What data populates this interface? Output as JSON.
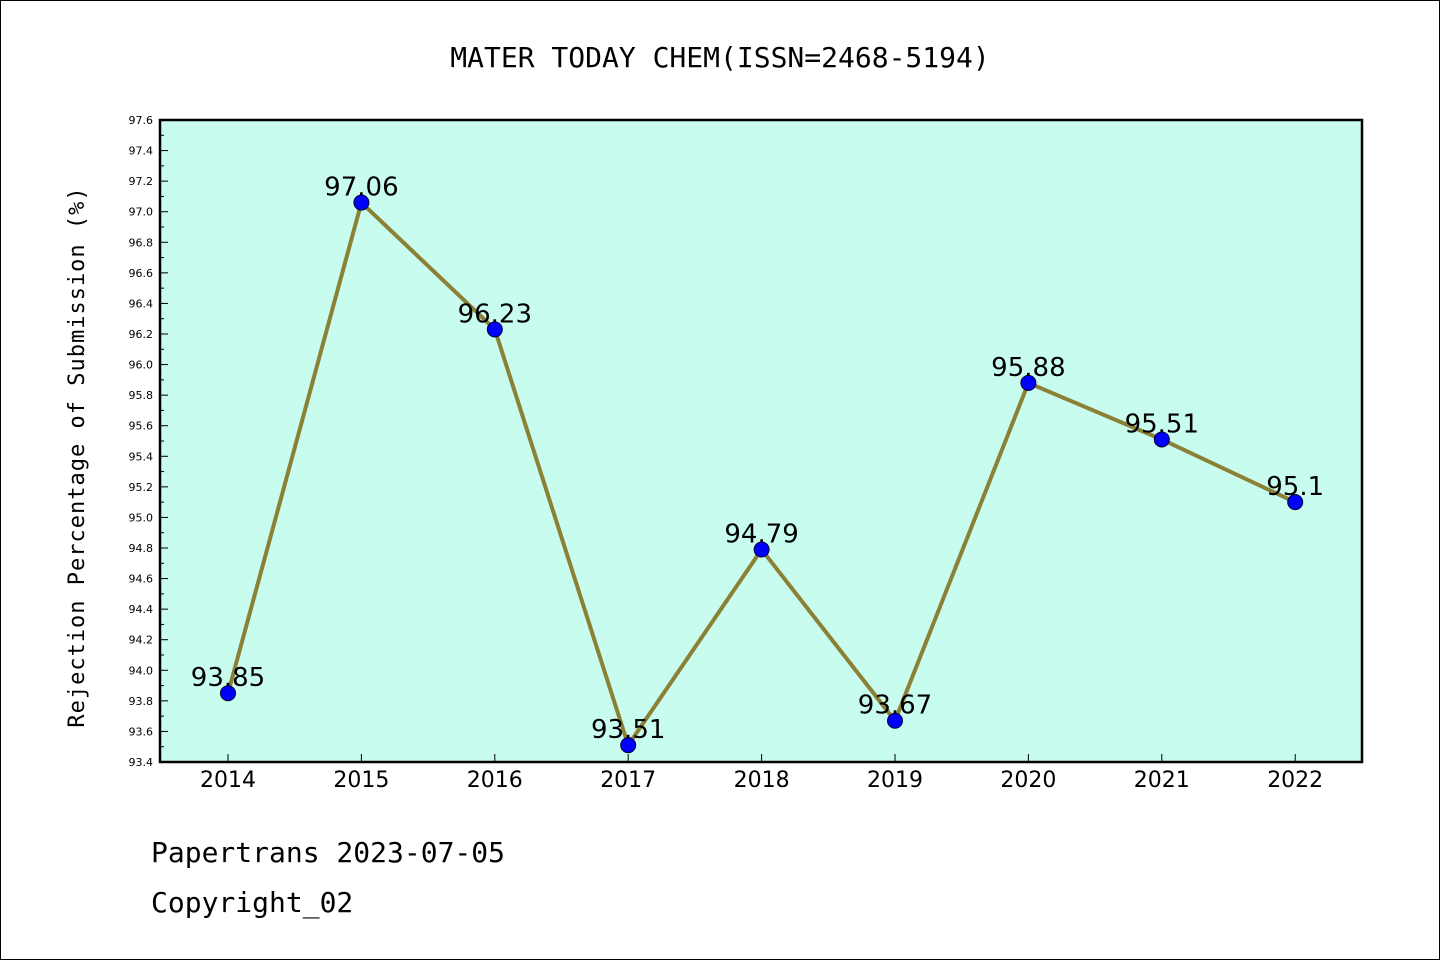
{
  "chart_data": {
    "type": "line",
    "title": "MATER TODAY CHEM(ISSN=2468-5194)",
    "xlabel": "",
    "ylabel": "Rejection Percentage of Submission (%)",
    "categories": [
      "2014",
      "2015",
      "2016",
      "2017",
      "2018",
      "2019",
      "2020",
      "2021",
      "2022"
    ],
    "values": [
      93.85,
      97.06,
      96.23,
      93.51,
      94.79,
      93.67,
      95.88,
      95.51,
      95.1
    ],
    "data_labels": [
      "93.85",
      "97.06",
      "96.23",
      "93.51",
      "94.79",
      "93.67",
      "95.88",
      "95.51",
      "95.1"
    ],
    "ylim": [
      93.4,
      97.6
    ],
    "yticks": [
      "93.4",
      "93.6",
      "93.8",
      "94.0",
      "94.2",
      "94.4",
      "94.6",
      "94.8",
      "95.0",
      "95.2",
      "95.4",
      "95.6",
      "95.8",
      "96.0",
      "96.2",
      "96.4",
      "96.6",
      "96.8",
      "97.0",
      "97.2",
      "97.4",
      "97.6"
    ],
    "grid": false,
    "colors": {
      "plot_background": "#c8fcee",
      "line": "#8b8136",
      "marker": "#0000ff"
    }
  },
  "footer": {
    "source": "Papertrans 2023-07-05",
    "copyright": "Copyright_02"
  }
}
